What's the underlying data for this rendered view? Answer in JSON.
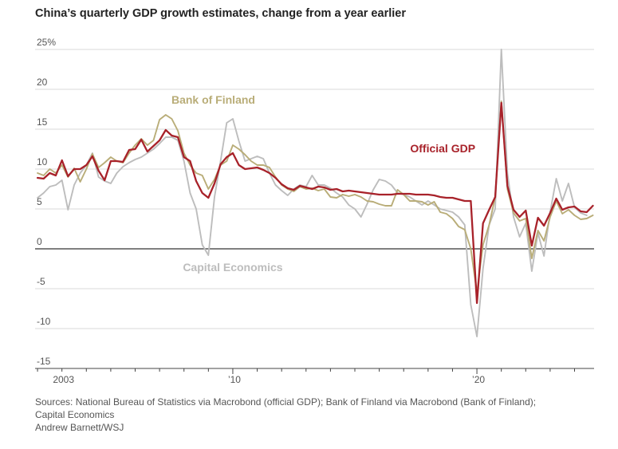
{
  "chart_data": {
    "type": "line",
    "title": "China’s quarterly GDP growth estimates, change from a year earlier",
    "ylim": [
      -15,
      25
    ],
    "yticks": [
      25,
      20,
      15,
      10,
      5,
      0,
      -5,
      -10,
      -15
    ],
    "ytick_labels": [
      "25%",
      "20",
      "15",
      "10",
      "5",
      "0",
      "-5",
      "-10",
      "-15"
    ],
    "xlim": [
      2001.9,
      2024.8
    ],
    "x_labels": [
      {
        "x": 2003.0,
        "label": "2003"
      },
      {
        "x": 2010.0,
        "label": "’10"
      },
      {
        "x": 2020.0,
        "label": "’20"
      }
    ],
    "series": [
      {
        "name": "Capital Economics",
        "label": "Capital Economics",
        "color": "#bdbdbd",
        "points": [
          [
            2002.0,
            6.4
          ],
          [
            2002.25,
            7.0
          ],
          [
            2002.5,
            7.8
          ],
          [
            2002.75,
            8.0
          ],
          [
            2003.0,
            8.6
          ],
          [
            2003.25,
            4.9
          ],
          [
            2003.5,
            8.0
          ],
          [
            2003.75,
            9.5
          ],
          [
            2004.0,
            10.5
          ],
          [
            2004.25,
            12.0
          ],
          [
            2004.5,
            9.0
          ],
          [
            2004.75,
            8.5
          ],
          [
            2005.0,
            8.2
          ],
          [
            2005.25,
            9.5
          ],
          [
            2005.5,
            10.3
          ],
          [
            2005.75,
            10.8
          ],
          [
            2006.0,
            11.2
          ],
          [
            2006.25,
            11.5
          ],
          [
            2006.5,
            12.0
          ],
          [
            2006.75,
            12.5
          ],
          [
            2007.0,
            13.2
          ],
          [
            2007.25,
            14.0
          ],
          [
            2007.5,
            14.0
          ],
          [
            2007.75,
            13.6
          ],
          [
            2008.0,
            11.0
          ],
          [
            2008.25,
            7.0
          ],
          [
            2008.5,
            5.0
          ],
          [
            2008.75,
            0.5
          ],
          [
            2009.0,
            -0.8
          ],
          [
            2009.25,
            6.5
          ],
          [
            2009.5,
            11.0
          ],
          [
            2009.75,
            15.8
          ],
          [
            2010.0,
            16.3
          ],
          [
            2010.25,
            13.5
          ],
          [
            2010.5,
            11.0
          ],
          [
            2010.75,
            11.3
          ],
          [
            2011.0,
            11.6
          ],
          [
            2011.25,
            11.3
          ],
          [
            2011.5,
            9.5
          ],
          [
            2011.75,
            8.0
          ],
          [
            2012.0,
            7.3
          ],
          [
            2012.25,
            6.7
          ],
          [
            2012.5,
            7.5
          ],
          [
            2012.75,
            8.0
          ],
          [
            2013.0,
            7.8
          ],
          [
            2013.25,
            9.2
          ],
          [
            2013.5,
            8.0
          ],
          [
            2013.75,
            8.0
          ],
          [
            2014.0,
            7.6
          ],
          [
            2014.25,
            7.0
          ],
          [
            2014.5,
            6.5
          ],
          [
            2014.75,
            5.5
          ],
          [
            2015.0,
            5.0
          ],
          [
            2015.25,
            4.0
          ],
          [
            2015.5,
            5.6
          ],
          [
            2015.75,
            7.4
          ],
          [
            2016.0,
            8.7
          ],
          [
            2016.25,
            8.5
          ],
          [
            2016.5,
            8.0
          ],
          [
            2016.75,
            7.0
          ],
          [
            2017.0,
            6.8
          ],
          [
            2017.25,
            6.5
          ],
          [
            2017.5,
            6.0
          ],
          [
            2017.75,
            5.5
          ],
          [
            2018.0,
            6.0
          ],
          [
            2018.25,
            5.5
          ],
          [
            2018.5,
            5.0
          ],
          [
            2018.75,
            4.8
          ],
          [
            2019.0,
            4.6
          ],
          [
            2019.25,
            4.0
          ],
          [
            2019.5,
            3.0
          ],
          [
            2019.75,
            -7.0
          ],
          [
            2020.0,
            -11.0
          ],
          [
            2020.25,
            -2.5
          ],
          [
            2020.5,
            3.0
          ],
          [
            2020.75,
            5.0
          ],
          [
            2021.0,
            25.0
          ],
          [
            2021.25,
            9.5
          ],
          [
            2021.5,
            4.0
          ],
          [
            2021.75,
            1.5
          ],
          [
            2022.0,
            3.2
          ],
          [
            2022.25,
            -2.8
          ],
          [
            2022.5,
            2.0
          ],
          [
            2022.75,
            -0.9
          ],
          [
            2023.0,
            4.6
          ],
          [
            2023.25,
            8.8
          ],
          [
            2023.5,
            6.0
          ],
          [
            2023.75,
            8.2
          ],
          [
            2024.0,
            5.2
          ],
          [
            2024.25,
            4.5
          ],
          [
            2024.5,
            4.2
          ]
        ]
      },
      {
        "name": "Bank of Finland",
        "label": "Bank of Finland",
        "color": "#b9ad78",
        "points": [
          [
            2002.0,
            9.5
          ],
          [
            2002.25,
            9.2
          ],
          [
            2002.5,
            10.0
          ],
          [
            2002.75,
            9.5
          ],
          [
            2003.0,
            10.5
          ],
          [
            2003.25,
            9.0
          ],
          [
            2003.5,
            10.1
          ],
          [
            2003.75,
            8.4
          ],
          [
            2004.0,
            10.0
          ],
          [
            2004.25,
            11.9
          ],
          [
            2004.5,
            10.2
          ],
          [
            2004.75,
            10.8
          ],
          [
            2005.0,
            11.5
          ],
          [
            2005.25,
            11.0
          ],
          [
            2005.5,
            10.8
          ],
          [
            2005.75,
            12.0
          ],
          [
            2006.0,
            13.0
          ],
          [
            2006.25,
            13.8
          ],
          [
            2006.5,
            13.0
          ],
          [
            2006.75,
            13.6
          ],
          [
            2007.0,
            16.2
          ],
          [
            2007.25,
            16.8
          ],
          [
            2007.5,
            16.3
          ],
          [
            2007.75,
            14.8
          ],
          [
            2008.0,
            12.0
          ],
          [
            2008.25,
            10.5
          ],
          [
            2008.5,
            9.5
          ],
          [
            2008.75,
            9.2
          ],
          [
            2009.0,
            7.5
          ],
          [
            2009.25,
            8.7
          ],
          [
            2009.5,
            10.5
          ],
          [
            2009.75,
            11.0
          ],
          [
            2010.0,
            13.0
          ],
          [
            2010.25,
            12.5
          ],
          [
            2010.5,
            11.8
          ],
          [
            2010.75,
            11.0
          ],
          [
            2011.0,
            10.5
          ],
          [
            2011.25,
            10.5
          ],
          [
            2011.5,
            10.2
          ],
          [
            2011.75,
            9.0
          ],
          [
            2012.0,
            8.0
          ],
          [
            2012.25,
            7.5
          ],
          [
            2012.5,
            7.2
          ],
          [
            2012.75,
            7.8
          ],
          [
            2013.0,
            7.5
          ],
          [
            2013.25,
            7.6
          ],
          [
            2013.5,
            7.3
          ],
          [
            2013.75,
            7.5
          ],
          [
            2014.0,
            6.5
          ],
          [
            2014.25,
            6.4
          ],
          [
            2014.5,
            6.8
          ],
          [
            2014.75,
            6.6
          ],
          [
            2015.0,
            6.8
          ],
          [
            2015.25,
            6.5
          ],
          [
            2015.5,
            6.0
          ],
          [
            2015.75,
            5.9
          ],
          [
            2016.0,
            5.6
          ],
          [
            2016.25,
            5.4
          ],
          [
            2016.5,
            5.4
          ],
          [
            2016.75,
            7.4
          ],
          [
            2017.0,
            6.8
          ],
          [
            2017.25,
            6.0
          ],
          [
            2017.5,
            6.0
          ],
          [
            2017.75,
            5.9
          ],
          [
            2018.0,
            5.5
          ],
          [
            2018.25,
            5.9
          ],
          [
            2018.5,
            4.6
          ],
          [
            2018.75,
            4.4
          ],
          [
            2019.0,
            3.8
          ],
          [
            2019.25,
            2.8
          ],
          [
            2019.5,
            2.4
          ],
          [
            2019.75,
            0.0
          ],
          [
            2020.0,
            -5.5
          ],
          [
            2020.25,
            0.5
          ],
          [
            2020.5,
            3.0
          ],
          [
            2020.75,
            6.5
          ],
          [
            2021.0,
            18.5
          ],
          [
            2021.25,
            7.5
          ],
          [
            2021.5,
            4.5
          ],
          [
            2021.75,
            3.5
          ],
          [
            2022.0,
            3.8
          ],
          [
            2022.25,
            -1.2
          ],
          [
            2022.5,
            2.3
          ],
          [
            2022.75,
            1.0
          ],
          [
            2023.0,
            4.0
          ],
          [
            2023.25,
            6.0
          ],
          [
            2023.5,
            4.4
          ],
          [
            2023.75,
            4.9
          ],
          [
            2024.0,
            4.2
          ],
          [
            2024.25,
            3.7
          ],
          [
            2024.5,
            3.8
          ],
          [
            2024.75,
            4.2
          ]
        ]
      },
      {
        "name": "Official GDP",
        "label": "Official GDP",
        "color": "#a8222a",
        "points": [
          [
            2002.0,
            8.9
          ],
          [
            2002.25,
            8.8
          ],
          [
            2002.5,
            9.5
          ],
          [
            2002.75,
            9.2
          ],
          [
            2003.0,
            11.1
          ],
          [
            2003.25,
            9.1
          ],
          [
            2003.5,
            10.0
          ],
          [
            2003.75,
            10.0
          ],
          [
            2004.0,
            10.5
          ],
          [
            2004.25,
            11.6
          ],
          [
            2004.5,
            9.8
          ],
          [
            2004.75,
            8.6
          ],
          [
            2005.0,
            11.0
          ],
          [
            2005.25,
            11.0
          ],
          [
            2005.5,
            10.9
          ],
          [
            2005.75,
            12.4
          ],
          [
            2006.0,
            12.5
          ],
          [
            2006.25,
            13.7
          ],
          [
            2006.5,
            12.2
          ],
          [
            2006.75,
            12.9
          ],
          [
            2007.0,
            13.6
          ],
          [
            2007.25,
            14.9
          ],
          [
            2007.5,
            14.2
          ],
          [
            2007.75,
            14.0
          ],
          [
            2008.0,
            11.5
          ],
          [
            2008.25,
            11.0
          ],
          [
            2008.5,
            8.5
          ],
          [
            2008.75,
            7.0
          ],
          [
            2009.0,
            6.4
          ],
          [
            2009.25,
            8.2
          ],
          [
            2009.5,
            10.6
          ],
          [
            2009.75,
            11.5
          ],
          [
            2010.0,
            12.0
          ],
          [
            2010.25,
            10.5
          ],
          [
            2010.5,
            10.0
          ],
          [
            2010.75,
            10.1
          ],
          [
            2011.0,
            10.2
          ],
          [
            2011.25,
            9.9
          ],
          [
            2011.5,
            9.5
          ],
          [
            2011.75,
            8.9
          ],
          [
            2012.0,
            8.1
          ],
          [
            2012.25,
            7.6
          ],
          [
            2012.5,
            7.4
          ],
          [
            2012.75,
            7.9
          ],
          [
            2013.0,
            7.7
          ],
          [
            2013.25,
            7.5
          ],
          [
            2013.5,
            7.8
          ],
          [
            2013.75,
            7.7
          ],
          [
            2014.0,
            7.4
          ],
          [
            2014.25,
            7.5
          ],
          [
            2014.5,
            7.2
          ],
          [
            2014.75,
            7.3
          ],
          [
            2015.0,
            7.2
          ],
          [
            2015.25,
            7.1
          ],
          [
            2015.5,
            7.0
          ],
          [
            2015.75,
            6.9
          ],
          [
            2016.0,
            6.8
          ],
          [
            2016.25,
            6.8
          ],
          [
            2016.5,
            6.8
          ],
          [
            2016.75,
            6.9
          ],
          [
            2017.0,
            6.9
          ],
          [
            2017.25,
            6.9
          ],
          [
            2017.5,
            6.8
          ],
          [
            2017.75,
            6.8
          ],
          [
            2018.0,
            6.8
          ],
          [
            2018.25,
            6.7
          ],
          [
            2018.5,
            6.5
          ],
          [
            2018.75,
            6.4
          ],
          [
            2019.0,
            6.4
          ],
          [
            2019.25,
            6.2
          ],
          [
            2019.5,
            6.0
          ],
          [
            2019.75,
            6.0
          ],
          [
            2020.0,
            -6.8
          ],
          [
            2020.25,
            3.2
          ],
          [
            2020.5,
            4.9
          ],
          [
            2020.75,
            6.5
          ],
          [
            2021.0,
            18.3
          ],
          [
            2021.25,
            7.9
          ],
          [
            2021.5,
            4.9
          ],
          [
            2021.75,
            4.0
          ],
          [
            2022.0,
            4.8
          ],
          [
            2022.25,
            0.4
          ],
          [
            2022.5,
            3.9
          ],
          [
            2022.75,
            2.9
          ],
          [
            2023.0,
            4.5
          ],
          [
            2023.25,
            6.3
          ],
          [
            2023.5,
            4.9
          ],
          [
            2023.75,
            5.2
          ],
          [
            2024.0,
            5.3
          ],
          [
            2024.25,
            4.7
          ],
          [
            2024.5,
            4.6
          ],
          [
            2024.75,
            5.4
          ]
        ]
      }
    ]
  },
  "sources": {
    "line1": "Sources: National Bureau of Statistics via Macrobond (official GDP); Bank of Finland via Macrobond (Bank of Finland);",
    "line2": "Capital Economics",
    "line3": "Andrew Barnett/WSJ"
  }
}
